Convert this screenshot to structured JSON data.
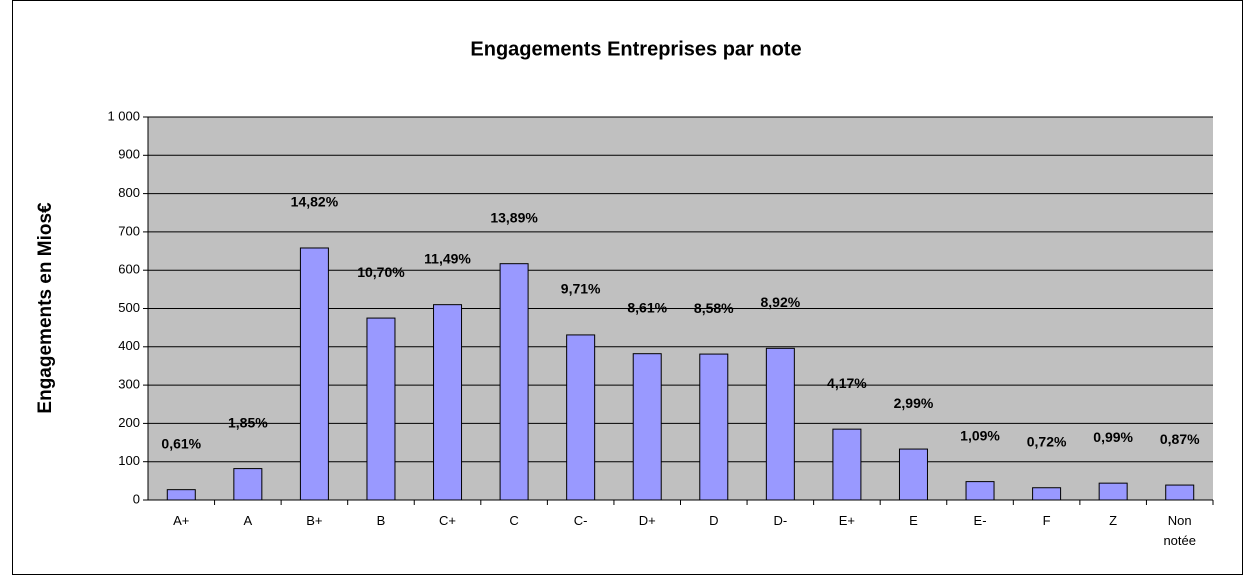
{
  "chart_data": {
    "type": "bar",
    "title": "Engagements Entreprises par note",
    "y_label": "Engagements en Mios€",
    "categories": [
      "A+",
      "A",
      "B+",
      "B",
      "C+",
      "C",
      "C-",
      "D+",
      "D",
      "D-",
      "E+",
      "E",
      "E-",
      "F",
      "Z",
      "Non notée"
    ],
    "values": [
      27,
      82,
      658,
      475,
      510,
      617,
      431,
      382,
      381,
      396,
      185,
      133,
      48,
      32,
      44,
      39
    ],
    "annotations": [
      "0,61%",
      "1,85%",
      "14,82%",
      "10,70%",
      "11,49%",
      "13,89%",
      "9,71%",
      "8,61%",
      "8,58%",
      "8,92%",
      "4,17%",
      "2,99%",
      "1,09%",
      "0,72%",
      "0,99%",
      "0,87%"
    ],
    "color": "#9999ff",
    "ylim": [
      0,
      1000
    ],
    "yticks": [
      0,
      100,
      200,
      300,
      400,
      500,
      600,
      700,
      800,
      900,
      {
        "value": 1000,
        "label": "1 000"
      }
    ],
    "grid": true
  }
}
